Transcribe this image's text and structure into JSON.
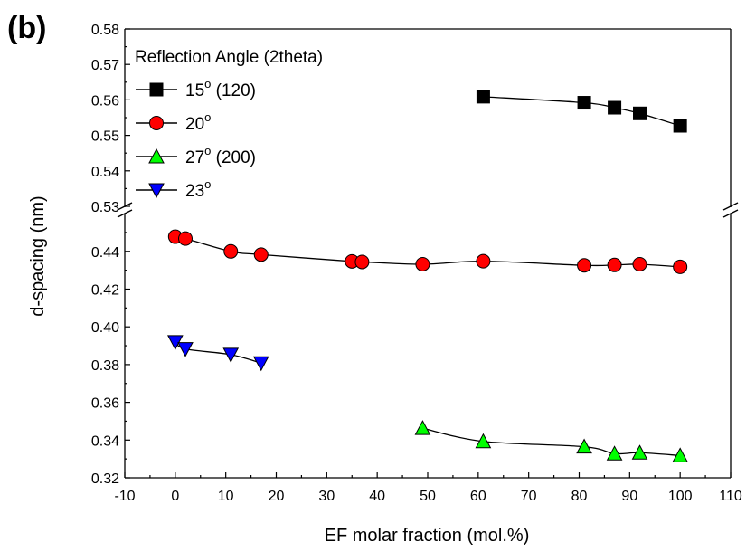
{
  "panel_label": "(b)",
  "chart_data": {
    "type": "scatter",
    "xlabel": "EF molar fraction (mol.%)",
    "ylabel": "d-spacing (nm)",
    "xlim": [
      -10,
      110
    ],
    "x_ticks": [
      "-10",
      "0",
      "10",
      "20",
      "30",
      "40",
      "50",
      "60",
      "70",
      "80",
      "90",
      "100",
      "110"
    ],
    "y_broken_axis": true,
    "y_lower_range": [
      0.32,
      0.46
    ],
    "y_upper_range": [
      0.53,
      0.58
    ],
    "y_lower_ticks": [
      "0.32",
      "0.34",
      "0.36",
      "0.38",
      "0.40",
      "0.42",
      "0.44"
    ],
    "y_upper_ticks": [
      "0.53",
      "0.54",
      "0.55",
      "0.56",
      "0.57",
      "0.58"
    ],
    "grid": false,
    "legend_title": "Reflection Angle (2theta)",
    "legend_placement": "top-left",
    "series": [
      {
        "name": "15° (120)",
        "angle": "15",
        "suffix": " (120)",
        "marker": "square",
        "color": "#000000",
        "x": [
          61,
          81,
          87,
          92,
          100
        ],
        "y": [
          0.5609,
          0.5592,
          0.5578,
          0.5562,
          0.5527
        ]
      },
      {
        "name": "20°",
        "angle": "20",
        "suffix": "",
        "marker": "circle",
        "color": "#ff0000",
        "x": [
          0,
          2,
          11,
          17,
          35,
          37,
          49,
          61,
          81,
          87,
          92,
          100
        ],
        "y": [
          0.4478,
          0.4468,
          0.44,
          0.4383,
          0.4347,
          0.4344,
          0.4332,
          0.4348,
          0.4326,
          0.4328,
          0.4332,
          0.4318
        ]
      },
      {
        "name": "27° (200)",
        "angle": "27",
        "suffix": " (200)",
        "marker": "triangle-up",
        "color": "#00ff00",
        "x": [
          49,
          61,
          81,
          87,
          92,
          100
        ],
        "y": [
          0.3463,
          0.3393,
          0.3365,
          0.3328,
          0.3333,
          0.3318
        ]
      },
      {
        "name": "23°",
        "angle": "23",
        "suffix": "",
        "marker": "triangle-down",
        "color": "#0000ff",
        "x": [
          0,
          2,
          11,
          17
        ],
        "y": [
          0.392,
          0.3883,
          0.3853,
          0.3808
        ]
      }
    ]
  }
}
